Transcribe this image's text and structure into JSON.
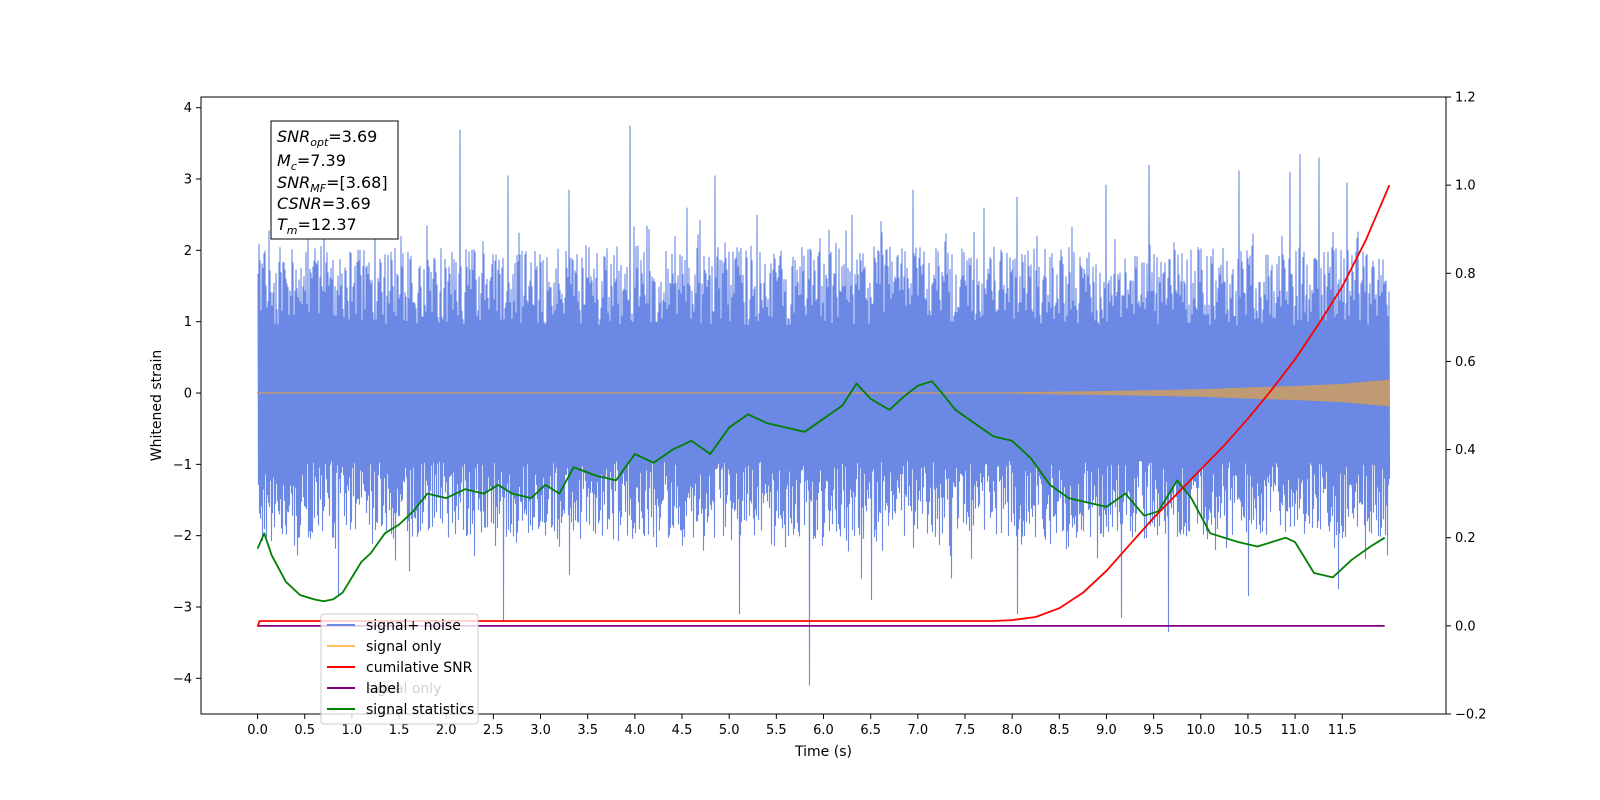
{
  "chart_data": {
    "type": "line",
    "xlabel": "Time (s)",
    "ylabel": "Whitened strain",
    "xlim": [
      -0.6,
      12.6
    ],
    "ylim": [
      -4.5,
      4.15
    ],
    "y2lim": [
      -0.2,
      1.2
    ],
    "x_ticks": [
      "0.0",
      "0.5",
      "1.0",
      "1.5",
      "2.0",
      "2.5",
      "3.0",
      "3.5",
      "4.0",
      "4.5",
      "5.0",
      "5.5",
      "6.0",
      "6.5",
      "7.0",
      "7.5",
      "8.0",
      "8.5",
      "9.0",
      "9.5",
      "10.0",
      "10.5",
      "11.0",
      "11.5"
    ],
    "y_ticks": [
      4,
      3,
      2,
      1,
      0,
      -1,
      -2,
      -3,
      -4
    ],
    "y_tick_labels": [
      "4",
      "3",
      "2",
      "1",
      "0",
      "−1",
      "−2",
      "−3",
      "−4"
    ],
    "y2_ticks": [
      1.2,
      1.0,
      0.8,
      0.6,
      0.4,
      0.2,
      0.0,
      -0.2
    ],
    "y2_tick_labels": [
      "1.2",
      "1.0",
      "0.8",
      "0.6",
      "0.4",
      "0.2",
      "0.0",
      "−0.2"
    ],
    "info_box": {
      "lines": [
        {
          "sym": "SNR",
          "sub": "opt",
          "val": "=3.69"
        },
        {
          "sym": "M",
          "sub": "c",
          "val": "=7.39"
        },
        {
          "sym": "SNR",
          "sub": "MF",
          "val": "=[3.68]"
        },
        {
          "sym": "CSNR",
          "sub": "",
          "val": "=3.69"
        },
        {
          "sym": "T",
          "sub": "m",
          "val": "=12.37"
        }
      ]
    },
    "legend": {
      "position": "lower-left",
      "entries": [
        {
          "label": "signal+ noise",
          "color": "#6a88e4"
        },
        {
          "label": "signal only",
          "color": "#ffbf60"
        },
        {
          "label": "cumilative SNR",
          "color": "#ff0000"
        },
        {
          "label": "label",
          "color": "#800080"
        },
        {
          "label": "signal statistics",
          "color": "#008000"
        }
      ],
      "hidden_text": [
        "signal only",
        "signal statistics"
      ]
    },
    "series": [
      {
        "name": "signal+ noise",
        "axis": "left",
        "color": "#6a88e4",
        "x_range": [
          0.0,
          12.0
        ],
        "band_upper_range": [
          0.95,
          2.05
        ],
        "band_lower_range": [
          -0.95,
          -2.05
        ],
        "spike_max": [
          [
            0.12,
            2.28
          ],
          [
            0.7,
            2.65
          ],
          [
            1.25,
            2.55
          ],
          [
            1.8,
            2.35
          ],
          [
            2.15,
            3.69
          ],
          [
            2.65,
            3.05
          ],
          [
            3.3,
            2.85
          ],
          [
            3.95,
            3.75
          ],
          [
            4.55,
            2.6
          ],
          [
            4.85,
            3.05
          ],
          [
            5.3,
            2.5
          ],
          [
            6.3,
            2.5
          ],
          [
            6.95,
            2.85
          ],
          [
            7.7,
            2.6
          ],
          [
            8.05,
            2.75
          ],
          [
            9.0,
            2.92
          ],
          [
            9.45,
            3.2
          ],
          [
            10.4,
            3.12
          ],
          [
            10.95,
            3.1
          ],
          [
            11.05,
            3.35
          ],
          [
            11.25,
            3.3
          ],
          [
            11.55,
            2.95
          ]
        ],
        "spike_min": [
          [
            0.85,
            -2.85
          ],
          [
            1.6,
            -2.5
          ],
          [
            2.6,
            -3.2
          ],
          [
            3.3,
            -2.55
          ],
          [
            5.1,
            -3.1
          ],
          [
            5.85,
            -4.1
          ],
          [
            6.4,
            -2.6
          ],
          [
            6.5,
            -2.9
          ],
          [
            7.35,
            -2.6
          ],
          [
            8.05,
            -3.1
          ],
          [
            9.15,
            -3.15
          ],
          [
            9.65,
            -3.35
          ],
          [
            10.5,
            -2.85
          ],
          [
            11.45,
            -2.75
          ]
        ]
      },
      {
        "name": "signal only",
        "axis": "left",
        "color": "#c09a72",
        "x": [
          0.0,
          8.0,
          9.0,
          10.0,
          10.5,
          11.0,
          11.5,
          12.0
        ],
        "amplitude": [
          0.003,
          0.003,
          0.02,
          0.045,
          0.07,
          0.09,
          0.12,
          0.18
        ]
      },
      {
        "name": "cumilative SNR",
        "axis": "right",
        "color": "#ff0000",
        "x": [
          0.0,
          0.02,
          7.5,
          7.8,
          8.0,
          8.25,
          8.5,
          8.75,
          9.0,
          9.25,
          9.5,
          9.75,
          10.0,
          10.25,
          10.5,
          10.75,
          11.0,
          11.25,
          11.5,
          11.75,
          12.0
        ],
        "values": [
          -0.002,
          0.011,
          0.011,
          0.011,
          0.013,
          0.02,
          0.04,
          0.075,
          0.125,
          0.185,
          0.245,
          0.3,
          0.355,
          0.41,
          0.47,
          0.535,
          0.605,
          0.685,
          0.77,
          0.875,
          1.0
        ]
      },
      {
        "name": "label",
        "axis": "right",
        "color": "#800080",
        "x": [
          0.0,
          11.95
        ],
        "values": [
          0.0,
          0.0
        ]
      },
      {
        "name": "signal statistics",
        "axis": "right",
        "color": "#008000",
        "x": [
          0.0,
          0.07,
          0.15,
          0.3,
          0.45,
          0.6,
          0.7,
          0.8,
          0.9,
          1.0,
          1.1,
          1.2,
          1.35,
          1.5,
          1.65,
          1.8,
          2.0,
          2.2,
          2.4,
          2.55,
          2.7,
          2.9,
          3.05,
          3.2,
          3.35,
          3.6,
          3.8,
          4.0,
          4.2,
          4.4,
          4.6,
          4.8,
          5.0,
          5.2,
          5.4,
          5.6,
          5.8,
          6.0,
          6.2,
          6.35,
          6.5,
          6.7,
          6.85,
          7.0,
          7.15,
          7.25,
          7.4,
          7.6,
          7.8,
          8.0,
          8.2,
          8.4,
          8.6,
          8.8,
          9.0,
          9.2,
          9.4,
          9.55,
          9.75,
          9.9,
          10.1,
          10.4,
          10.6,
          10.9,
          11.0,
          11.2,
          11.4,
          11.6,
          11.8,
          11.95
        ],
        "values": [
          0.175,
          0.21,
          0.16,
          0.1,
          0.07,
          0.06,
          0.056,
          0.06,
          0.075,
          0.11,
          0.145,
          0.165,
          0.21,
          0.23,
          0.26,
          0.3,
          0.29,
          0.31,
          0.3,
          0.32,
          0.3,
          0.29,
          0.32,
          0.3,
          0.36,
          0.34,
          0.33,
          0.39,
          0.37,
          0.4,
          0.42,
          0.39,
          0.45,
          0.48,
          0.46,
          0.45,
          0.44,
          0.47,
          0.5,
          0.55,
          0.515,
          0.49,
          0.52,
          0.545,
          0.555,
          0.53,
          0.49,
          0.46,
          0.43,
          0.42,
          0.38,
          0.32,
          0.29,
          0.28,
          0.27,
          0.3,
          0.25,
          0.26,
          0.33,
          0.29,
          0.21,
          0.19,
          0.18,
          0.2,
          0.19,
          0.12,
          0.11,
          0.15,
          0.18,
          0.2
        ]
      }
    ]
  }
}
